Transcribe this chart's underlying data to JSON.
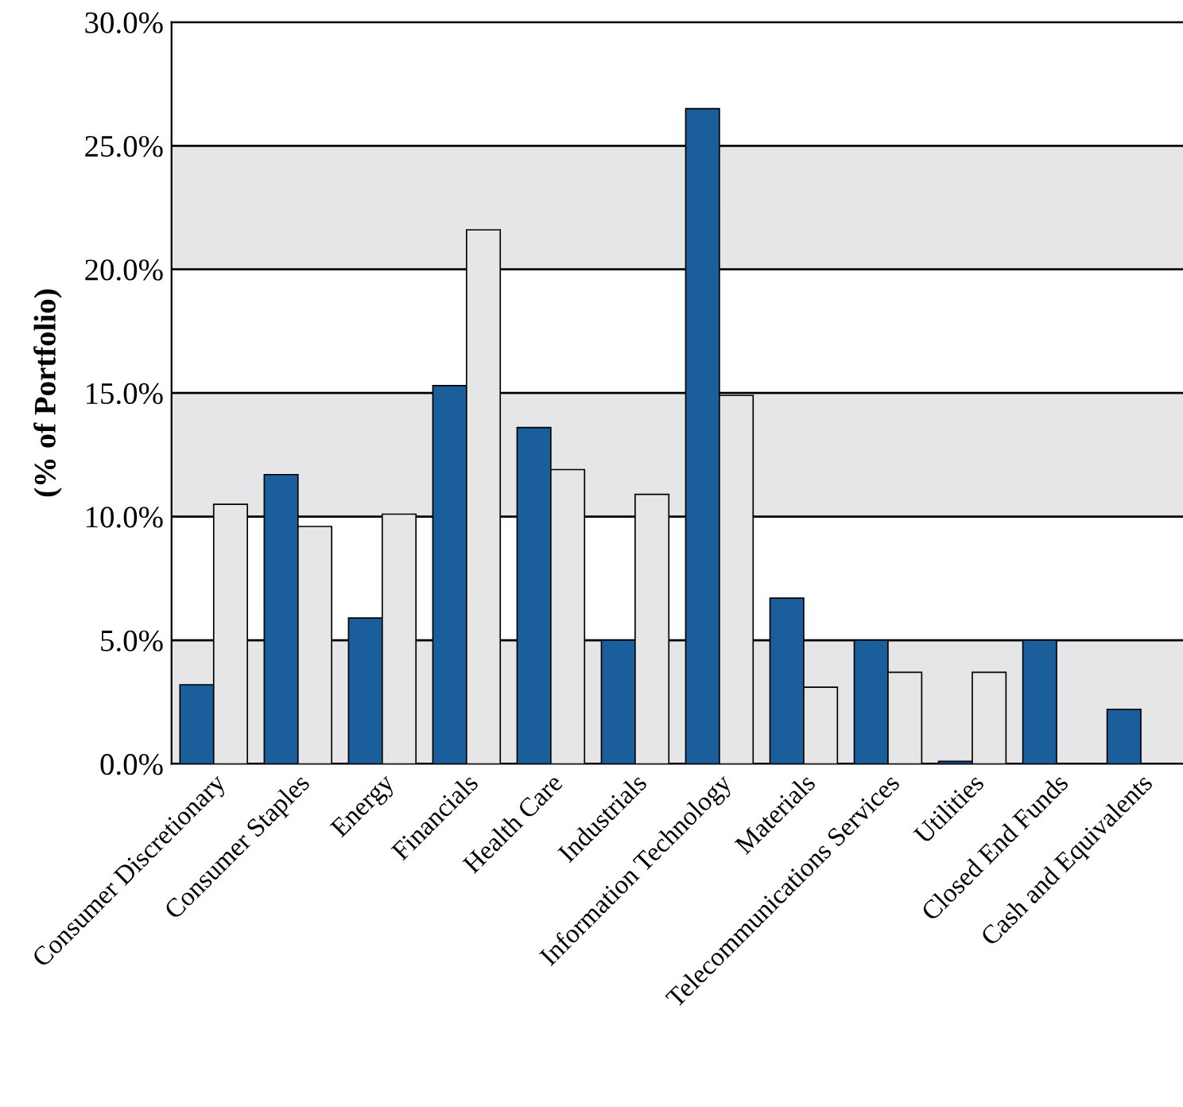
{
  "chart_data": {
    "type": "bar",
    "ylabel": "(% of Portfolio)",
    "categories": [
      "Consumer Discretionary",
      "Consumer Staples",
      "Energy",
      "Financials",
      "Health Care",
      "Industrials",
      "Information Technology",
      "Materials",
      "Telecommunications Services",
      "Utilities",
      "Closed End Funds",
      "Cash and Equivalents"
    ],
    "series": [
      {
        "color": "#1a5e9c",
        "values": [
          3.2,
          11.7,
          5.9,
          15.3,
          13.6,
          5.0,
          26.5,
          6.7,
          5.0,
          0.1,
          5.0,
          2.2
        ]
      },
      {
        "color": "#e6e6e6",
        "values": [
          10.5,
          9.6,
          10.1,
          21.6,
          11.9,
          10.9,
          14.9,
          3.1,
          3.7,
          3.7,
          null,
          null
        ]
      }
    ],
    "ylim": [
      0,
      30
    ],
    "yticks": [
      {
        "value": 0,
        "label": "0.0%"
      },
      {
        "value": 5,
        "label": "5.0%"
      },
      {
        "value": 10,
        "label": "10.0%"
      },
      {
        "value": 15,
        "label": "15.0%"
      },
      {
        "value": 20,
        "label": "20.0%"
      },
      {
        "value": 25,
        "label": "25.0%"
      },
      {
        "value": 30,
        "label": "30.0%"
      }
    ],
    "grid": "y"
  }
}
